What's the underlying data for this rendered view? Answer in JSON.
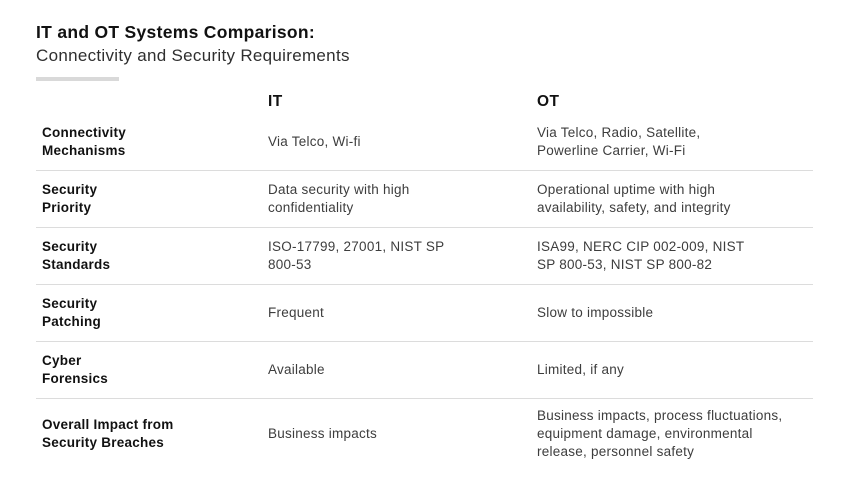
{
  "header": {
    "title": "IT and OT Systems Comparison:",
    "subtitle": "Connectivity and Security Requirements"
  },
  "table": {
    "col_headers": {
      "it": "IT",
      "ot": "OT"
    },
    "rows": [
      {
        "label": "Connectivity\nMechanisms",
        "it": "Via Telco, Wi-fi",
        "ot": "Via Telco, Radio, Satellite,\nPowerline Carrier, Wi-Fi"
      },
      {
        "label": "Security\nPriority",
        "it": "Data security with high\nconfidentiality",
        "ot": "Operational uptime with high\navailability, safety, and integrity"
      },
      {
        "label": "Security\nStandards",
        "it": "ISO-17799, 27001, NIST SP\n800-53",
        "ot": "ISA99, NERC CIP 002-009, NIST\nSP 800-53, NIST SP 800-82"
      },
      {
        "label": "Security\nPatching",
        "it": "Frequent",
        "ot": "Slow to impossible"
      },
      {
        "label": "Cyber\nForensics",
        "it": "Available",
        "ot": "Limited, if any"
      },
      {
        "label": "Overall Impact from\nSecurity Breaches",
        "it": "Business impacts",
        "ot": "Business impacts, process fluctuations,\nequipment damage, environmental\nrelease, personnel safety"
      }
    ]
  },
  "colors": {
    "title_color": "#111111",
    "subtitle_color": "#2f2f2f",
    "body_text": "#3d3d3d",
    "divider": "#dcdcdc",
    "accent_bar": "#d9d9d9",
    "background": "#ffffff"
  }
}
